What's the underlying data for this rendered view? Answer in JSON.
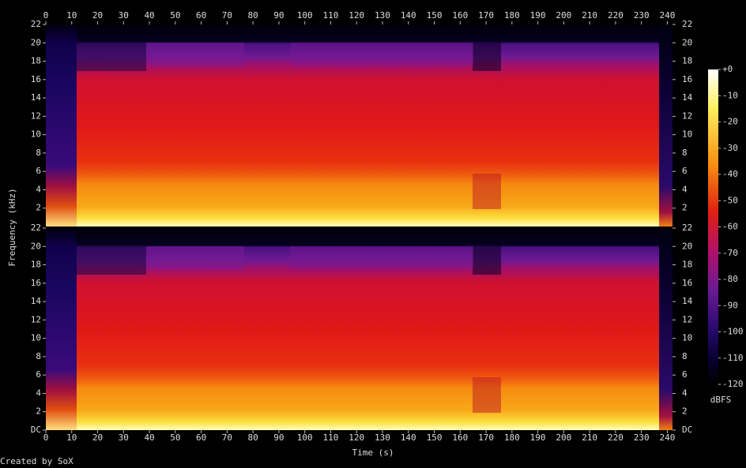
{
  "chart_data": {
    "type": "spectrogram",
    "x_label": "Time (s)",
    "y_label": "Frequency (kHz)",
    "xlim": [
      0,
      242
    ],
    "xticks": [
      0,
      10,
      20,
      30,
      40,
      50,
      60,
      70,
      80,
      90,
      100,
      110,
      120,
      130,
      140,
      150,
      160,
      170,
      180,
      190,
      200,
      210,
      220,
      230,
      240
    ],
    "panels": [
      {
        "ylim": [
          0,
          22
        ],
        "yticks": [
          2,
          4,
          6,
          8,
          10,
          12,
          14,
          16,
          18,
          20,
          22
        ]
      },
      {
        "ylim": [
          0,
          22
        ],
        "yticks": [
          {
            "value": 0,
            "label": "DC"
          },
          2,
          4,
          6,
          8,
          10,
          12,
          14,
          16,
          18,
          20,
          22
        ]
      }
    ],
    "colorbar": {
      "label": "dBFS",
      "lim": [
        -120,
        0
      ],
      "ticks": [
        {
          "value": 0,
          "label": "+0"
        },
        -10,
        -20,
        -30,
        -40,
        -50,
        -60,
        -70,
        -80,
        -90,
        -100,
        -110,
        -120
      ]
    },
    "footer": "Created by SoX"
  }
}
